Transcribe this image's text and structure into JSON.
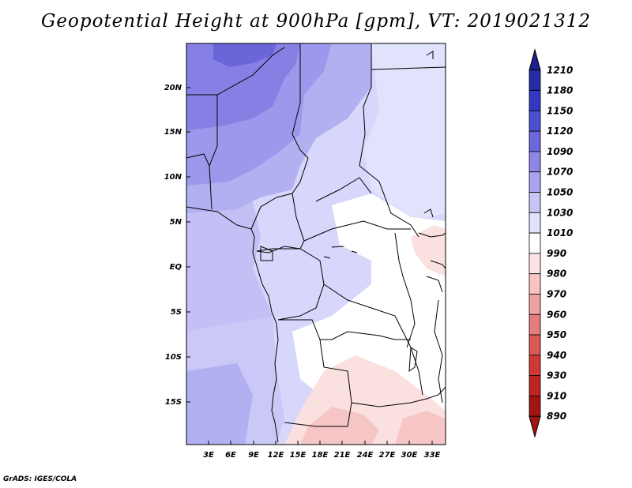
{
  "title": "Geopotential Height at 900hPa [gpm], VT: 2019021312",
  "credit": "GrADS: IGES/COLA",
  "map": {
    "lat_labels": [
      "20N",
      "15N",
      "10N",
      "5N",
      "EQ",
      "5S",
      "10S",
      "15S"
    ],
    "lon_labels": [
      "3E",
      "6E",
      "9E",
      "12E",
      "15E",
      "18E",
      "21E",
      "24E",
      "27E",
      "30E",
      "33E"
    ]
  },
  "colorbar": {
    "levels": [
      "1210",
      "1180",
      "1150",
      "1120",
      "1090",
      "1070",
      "1050",
      "1030",
      "1010",
      "990",
      "980",
      "970",
      "960",
      "950",
      "940",
      "930",
      "910",
      "890"
    ],
    "colors": [
      "#1b1f8f",
      "#262ba6",
      "#3238c0",
      "#4a50d0",
      "#6c68dc",
      "#8c86e6",
      "#a8a4ef",
      "#c6c5f6",
      "#e0e1fb",
      "#ffffff",
      "#fde3e3",
      "#f8c4c4",
      "#f0a2a2",
      "#e77c7c",
      "#dd5757",
      "#d03838",
      "#bf2424",
      "#a01414"
    ]
  },
  "colors": {
    "land_border": "#000000",
    "frame": "#000000"
  }
}
